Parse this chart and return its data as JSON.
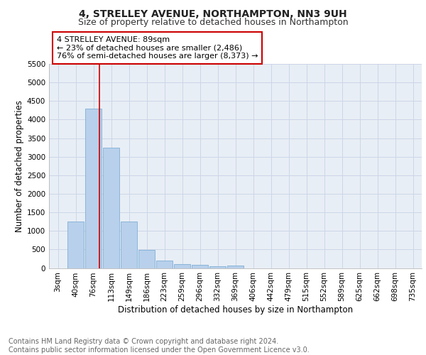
{
  "title1": "4, STRELLEY AVENUE, NORTHAMPTON, NN3 9UH",
  "title2": "Size of property relative to detached houses in Northampton",
  "xlabel": "Distribution of detached houses by size in Northampton",
  "ylabel": "Number of detached properties",
  "bin_labels": [
    "3sqm",
    "40sqm",
    "76sqm",
    "113sqm",
    "149sqm",
    "186sqm",
    "223sqm",
    "259sqm",
    "296sqm",
    "332sqm",
    "369sqm",
    "406sqm",
    "442sqm",
    "479sqm",
    "515sqm",
    "552sqm",
    "589sqm",
    "625sqm",
    "662sqm",
    "698sqm",
    "735sqm"
  ],
  "bar_values": [
    0,
    1250,
    4300,
    3250,
    1250,
    480,
    200,
    100,
    80,
    50,
    60,
    0,
    0,
    0,
    0,
    0,
    0,
    0,
    0,
    0,
    0
  ],
  "bar_color": "#b8d0eb",
  "bar_edge_color": "#7fafd6",
  "grid_color": "#ccd6e8",
  "background_color": "#e8eef5",
  "property_line_color": "#cc0000",
  "annotation_text": "4 STRELLEY AVENUE: 89sqm\n← 23% of detached houses are smaller (2,486)\n76% of semi-detached houses are larger (8,373) →",
  "annotation_box_color": "#cc0000",
  "ylim": [
    0,
    5500
  ],
  "yticks": [
    0,
    500,
    1000,
    1500,
    2000,
    2500,
    3000,
    3500,
    4000,
    4500,
    5000,
    5500
  ],
  "footer_text": "Contains HM Land Registry data © Crown copyright and database right 2024.\nContains public sector information licensed under the Open Government Licence v3.0.",
  "title1_fontsize": 10,
  "title2_fontsize": 9,
  "axis_fontsize": 8.5,
  "tick_fontsize": 7.5,
  "footer_fontsize": 7
}
